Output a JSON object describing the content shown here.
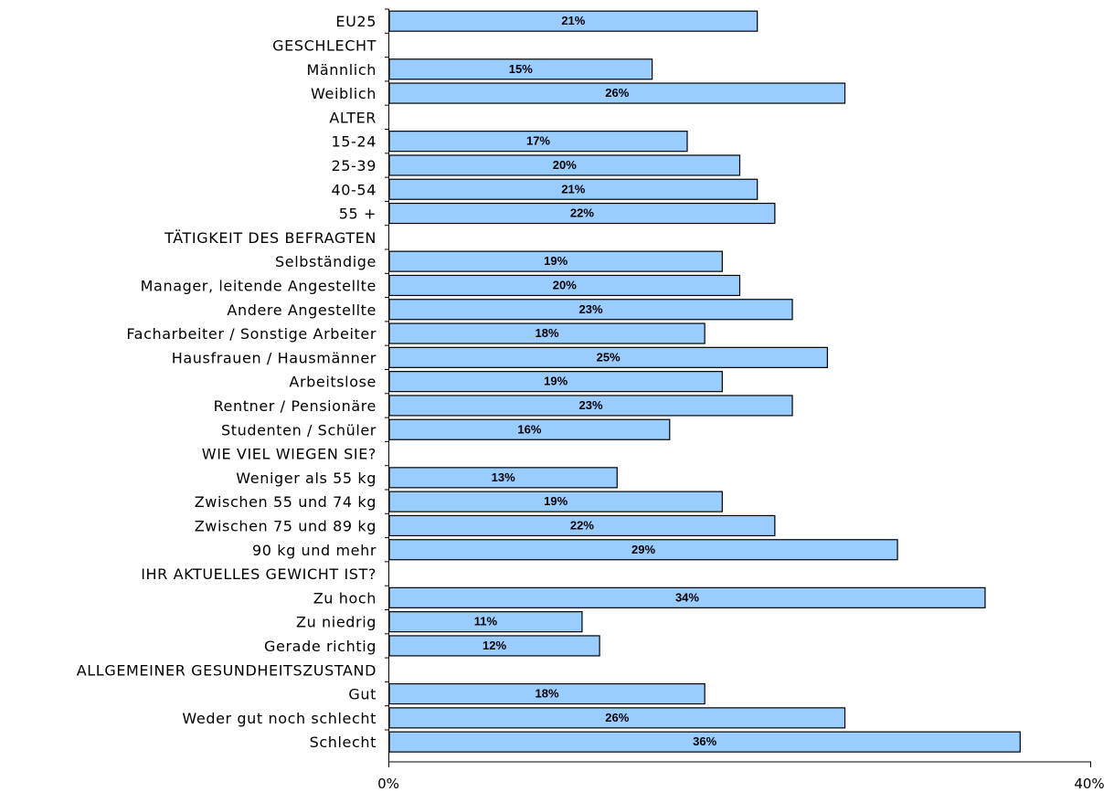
{
  "chart_data": {
    "type": "bar",
    "orientation": "horizontal",
    "categories": [
      "EU25",
      "GESCHLECHT",
      "Männlich",
      "Weiblich",
      "ALTER",
      "15-24",
      "25-39",
      "40-54",
      "55 +",
      "TÄTIGKEIT DES BEFRAGTEN",
      "Selbständige",
      "Manager, leitende Angestellte",
      "Andere Angestellte",
      "Facharbeiter / Sonstige Arbeiter",
      "Hausfrauen / Hausmänner",
      "Arbeitslose",
      "Rentner / Pensionäre",
      "Studenten / Schüler",
      "WIE VIEL WIEGEN SIE?",
      "Weniger als 55 kg",
      "Zwischen 55 und 74 kg",
      "Zwischen 75 und 89 kg",
      "90 kg und mehr",
      "IHR AKTUELLES GEWICHT IST?",
      "Zu hoch",
      "Zu niedrig",
      "Gerade richtig",
      "ALLGEMEINER GESUNDHEITSZUSTAND",
      "Gut",
      "Weder gut noch schlecht",
      "Schlecht"
    ],
    "values": [
      21,
      null,
      15,
      26,
      null,
      17,
      20,
      21,
      22,
      null,
      19,
      20,
      23,
      18,
      25,
      19,
      23,
      16,
      null,
      13,
      19,
      22,
      29,
      null,
      34,
      11,
      12,
      null,
      18,
      26,
      36
    ],
    "value_labels": [
      "21%",
      "",
      "15%",
      "26%",
      "",
      "17%",
      "20%",
      "21%",
      "22%",
      "",
      "19%",
      "20%",
      "23%",
      "18%",
      "25%",
      "19%",
      "23%",
      "16%",
      "",
      "13%",
      "19%",
      "22%",
      "29%",
      "",
      "34%",
      "11%",
      "12%",
      "",
      "18%",
      "26%",
      "36%"
    ],
    "xlim": [
      0,
      40
    ],
    "x_tick_labels": [
      "0%",
      "40%"
    ],
    "bar_color": "#99ccff",
    "grid": false,
    "legend": "none",
    "title": "",
    "xlabel": "",
    "ylabel": ""
  }
}
